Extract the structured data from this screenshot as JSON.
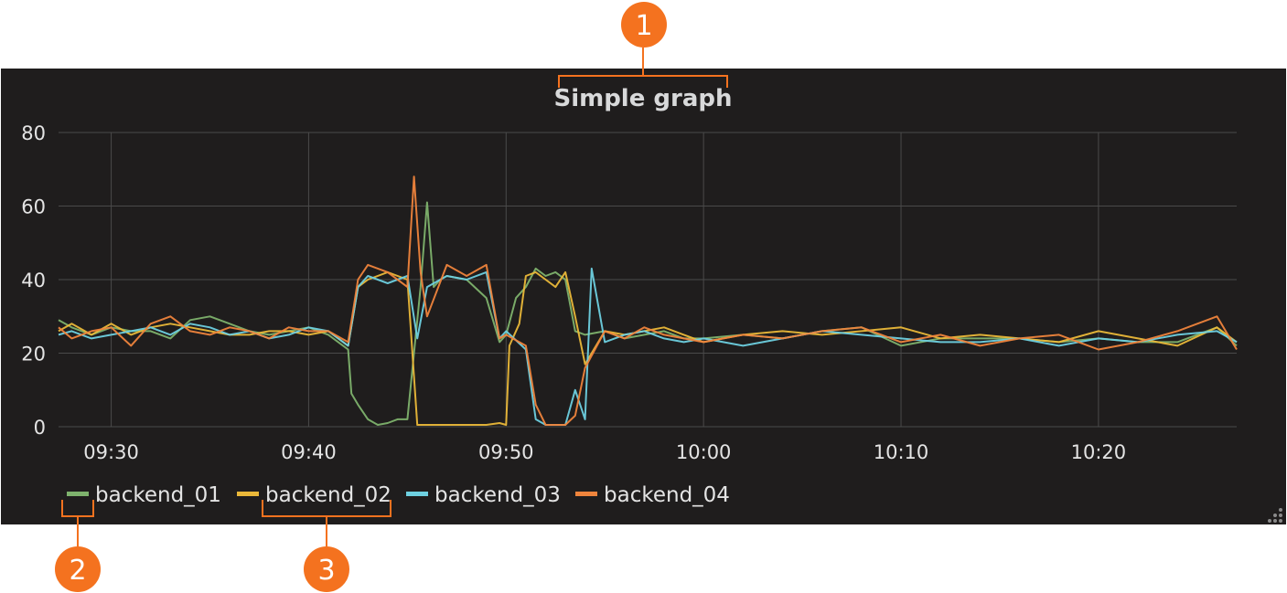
{
  "panel": {
    "title": "Simple graph",
    "background": "#1f1d1d",
    "grid_color": "#4a4a4a"
  },
  "callouts": [
    {
      "number": "1",
      "color": "#f4721f"
    },
    {
      "number": "2",
      "color": "#f4721f"
    },
    {
      "number": "3",
      "color": "#f4721f"
    }
  ],
  "resize_handle": {
    "icon": "resize-grip-icon"
  },
  "chart_data": {
    "type": "line",
    "title": "Simple graph",
    "xlabel": "",
    "ylabel": "",
    "x_ticks": [
      "09:30",
      "09:40",
      "09:50",
      "10:00",
      "10:10",
      "10:20"
    ],
    "x_range": [
      "09:27:20",
      "10:27:00"
    ],
    "y_ticks": [
      "0",
      "20",
      "40",
      "60",
      "80"
    ],
    "ylim": [
      0,
      80
    ],
    "grid": true,
    "legend_position": "bottom-left",
    "series": [
      {
        "name": "backend_01",
        "color": "#7eb26d",
        "x": [
          "09:27:20",
          "09:28:00",
          "09:29:00",
          "09:30:00",
          "09:31:00",
          "09:32:00",
          "09:33:00",
          "09:34:00",
          "09:35:00",
          "09:36:00",
          "09:37:00",
          "09:38:00",
          "09:39:00",
          "09:40:00",
          "09:41:00",
          "09:42:00",
          "09:42:10",
          "09:42:30",
          "09:43:00",
          "09:43:30",
          "09:44:00",
          "09:44:30",
          "09:45:00",
          "09:45:20",
          "09:45:40",
          "09:46:00",
          "09:46:20",
          "09:46:40",
          "09:47:00",
          "09:48:00",
          "09:49:00",
          "09:49:40",
          "09:50:00",
          "09:50:30",
          "09:51:00",
          "09:51:30",
          "09:52:00",
          "09:52:30",
          "09:53:00",
          "09:53:30",
          "09:54:00",
          "09:55:00",
          "09:56:00",
          "09:57:00",
          "09:58:00",
          "09:59:00",
          "10:00:00",
          "10:02:00",
          "10:04:00",
          "10:06:00",
          "10:08:00",
          "10:10:00",
          "10:12:00",
          "10:14:00",
          "10:16:00",
          "10:18:00",
          "10:20:00",
          "10:22:00",
          "10:24:00",
          "10:26:00",
          "10:27:00"
        ],
        "y": [
          29,
          27,
          25,
          27,
          26,
          26,
          24,
          29,
          30,
          28,
          26,
          25,
          26,
          27,
          25,
          21,
          9,
          6,
          2,
          0.5,
          1,
          2,
          2,
          20,
          38,
          61,
          38,
          40,
          41,
          40,
          35,
          23,
          25,
          35,
          38,
          43,
          41,
          42,
          40,
          26,
          25,
          26,
          24,
          25,
          26,
          24,
          24,
          25,
          24,
          26,
          27,
          22,
          24,
          24,
          24,
          23,
          24,
          23,
          23,
          27,
          22
        ]
      },
      {
        "name": "backend_02",
        "color": "#eab839",
        "x": [
          "09:27:20",
          "09:28:00",
          "09:29:00",
          "09:30:00",
          "09:31:00",
          "09:32:00",
          "09:33:00",
          "09:34:00",
          "09:35:00",
          "09:36:00",
          "09:37:00",
          "09:38:00",
          "09:39:00",
          "09:40:00",
          "09:41:00",
          "09:42:00",
          "09:42:30",
          "09:43:00",
          "09:44:00",
          "09:45:00",
          "09:45:30",
          "09:46:00",
          "09:47:00",
          "09:48:00",
          "09:49:00",
          "09:49:40",
          "09:50:00",
          "09:50:10",
          "09:50:40",
          "09:51:00",
          "09:51:30",
          "09:52:00",
          "09:52:30",
          "09:53:00",
          "09:53:30",
          "09:54:00",
          "09:55:00",
          "09:56:00",
          "09:57:00",
          "09:58:00",
          "09:59:00",
          "10:00:00",
          "10:02:00",
          "10:04:00",
          "10:06:00",
          "10:08:00",
          "10:10:00",
          "10:12:00",
          "10:14:00",
          "10:16:00",
          "10:18:00",
          "10:20:00",
          "10:22:00",
          "10:24:00",
          "10:26:00",
          "10:27:00"
        ],
        "y": [
          26,
          28,
          25,
          28,
          25,
          27,
          28,
          27,
          26,
          25,
          25,
          26,
          26,
          25,
          26,
          22,
          38,
          40,
          42,
          40,
          0.5,
          0.5,
          0.5,
          0.5,
          0.5,
          1,
          0.5,
          22,
          28,
          41,
          42,
          40,
          38,
          42,
          30,
          17,
          26,
          25,
          26,
          27,
          25,
          23,
          25,
          26,
          25,
          26,
          27,
          24,
          25,
          24,
          23,
          26,
          24,
          22,
          27,
          23
        ]
      },
      {
        "name": "backend_03",
        "color": "#6ed0e0",
        "x": [
          "09:27:20",
          "09:28:00",
          "09:29:00",
          "09:30:00",
          "09:31:00",
          "09:32:00",
          "09:33:00",
          "09:34:00",
          "09:35:00",
          "09:36:00",
          "09:37:00",
          "09:38:00",
          "09:39:00",
          "09:40:00",
          "09:41:00",
          "09:42:00",
          "09:42:30",
          "09:43:00",
          "09:44:00",
          "09:45:00",
          "09:45:30",
          "09:46:00",
          "09:47:00",
          "09:48:00",
          "09:49:00",
          "09:49:40",
          "09:50:00",
          "09:51:00",
          "09:51:30",
          "09:52:00",
          "09:53:00",
          "09:53:30",
          "09:54:00",
          "09:54:20",
          "09:55:00",
          "09:56:00",
          "09:57:00",
          "09:58:00",
          "09:59:00",
          "10:00:00",
          "10:02:00",
          "10:04:00",
          "10:06:00",
          "10:08:00",
          "10:10:00",
          "10:12:00",
          "10:14:00",
          "10:16:00",
          "10:18:00",
          "10:20:00",
          "10:22:00",
          "10:24:00",
          "10:26:00",
          "10:27:00"
        ],
        "y": [
          25,
          26,
          24,
          25,
          26,
          27,
          25,
          28,
          27,
          25,
          26,
          24,
          25,
          27,
          26,
          22,
          38,
          41,
          39,
          41,
          24,
          38,
          41,
          40,
          42,
          24,
          26,
          21,
          2,
          0.5,
          0.5,
          10,
          2,
          43,
          23,
          25,
          26,
          24,
          23,
          24,
          22,
          24,
          26,
          25,
          24,
          23,
          23,
          24,
          22,
          24,
          23,
          25,
          26,
          23
        ]
      },
      {
        "name": "backend_04",
        "color": "#ef843c",
        "x": [
          "09:27:20",
          "09:28:00",
          "09:29:00",
          "09:30:00",
          "09:31:00",
          "09:32:00",
          "09:33:00",
          "09:34:00",
          "09:35:00",
          "09:36:00",
          "09:37:00",
          "09:38:00",
          "09:39:00",
          "09:40:00",
          "09:41:00",
          "09:42:00",
          "09:42:30",
          "09:43:00",
          "09:44:00",
          "09:45:00",
          "09:45:20",
          "09:45:40",
          "09:46:00",
          "09:47:00",
          "09:48:00",
          "09:49:00",
          "09:49:40",
          "09:50:00",
          "09:51:00",
          "09:51:30",
          "09:52:00",
          "09:53:00",
          "09:53:30",
          "09:54:00",
          "09:55:00",
          "09:56:00",
          "09:57:00",
          "09:58:00",
          "09:59:00",
          "10:00:00",
          "10:02:00",
          "10:04:00",
          "10:06:00",
          "10:08:00",
          "10:10:00",
          "10:12:00",
          "10:14:00",
          "10:16:00",
          "10:18:00",
          "10:20:00",
          "10:22:00",
          "10:24:00",
          "10:26:00",
          "10:27:00"
        ],
        "y": [
          27,
          24,
          26,
          27,
          22,
          28,
          30,
          26,
          25,
          27,
          26,
          24,
          27,
          26,
          26,
          23,
          40,
          44,
          42,
          38,
          68,
          42,
          30,
          44,
          41,
          44,
          24,
          25,
          22,
          6,
          0.5,
          0.5,
          3,
          16,
          26,
          24,
          27,
          25,
          24,
          23,
          25,
          24,
          26,
          27,
          23,
          25,
          22,
          24,
          25,
          21,
          23,
          26,
          30,
          21
        ]
      }
    ]
  }
}
